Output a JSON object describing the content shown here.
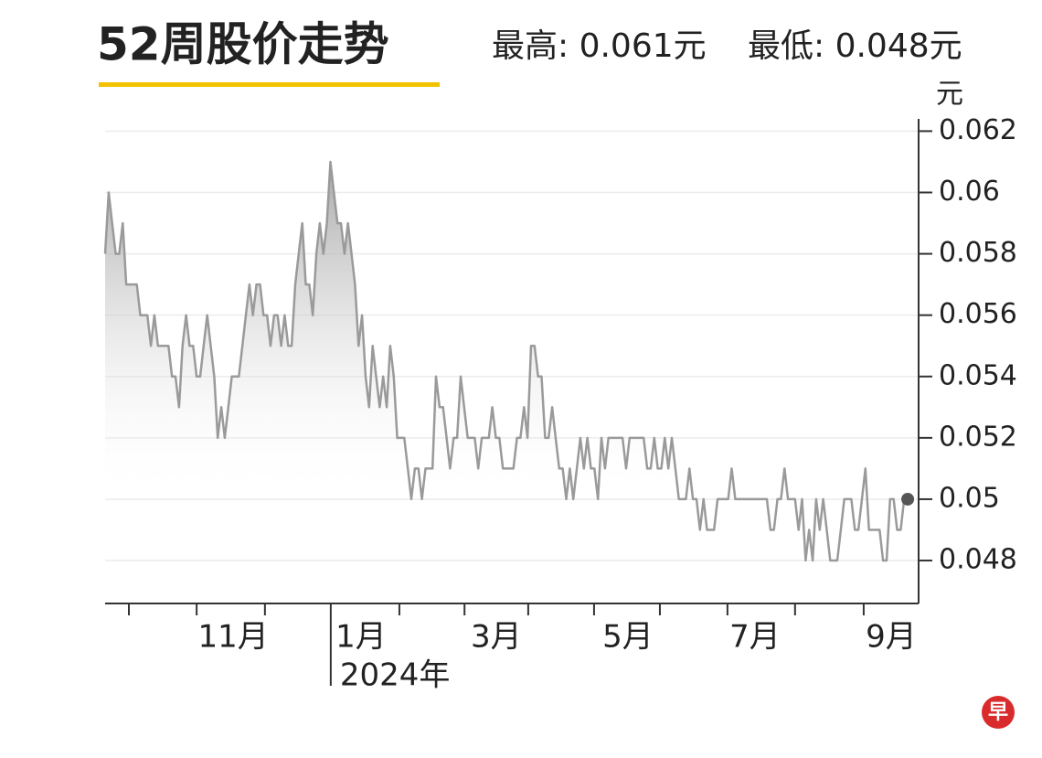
{
  "chart_data": {
    "type": "line",
    "title": "52周股价走势",
    "high_label": "最高: 0.061元",
    "low_label": "最低: 0.048元",
    "y_unit": "元",
    "logo": "早",
    "color": "#9a9a9a",
    "marker_color": "#555555",
    "grid": true,
    "values": [
      0.058,
      0.06,
      0.059,
      0.058,
      0.058,
      0.059,
      0.057,
      0.057,
      0.057,
      0.057,
      0.056,
      0.056,
      0.056,
      0.055,
      0.056,
      0.055,
      0.055,
      0.055,
      0.055,
      0.054,
      0.054,
      0.053,
      0.055,
      0.056,
      0.055,
      0.055,
      0.054,
      0.054,
      0.055,
      0.056,
      0.055,
      0.054,
      0.052,
      0.053,
      0.052,
      0.053,
      0.054,
      0.054,
      0.054,
      0.055,
      0.056,
      0.057,
      0.056,
      0.057,
      0.057,
      0.056,
      0.056,
      0.055,
      0.056,
      0.056,
      0.055,
      0.056,
      0.055,
      0.055,
      0.057,
      0.058,
      0.059,
      0.057,
      0.057,
      0.056,
      0.058,
      0.059,
      0.058,
      0.059,
      0.061,
      0.06,
      0.059,
      0.059,
      0.058,
      0.059,
      0.058,
      0.057,
      0.055,
      0.056,
      0.054,
      0.053,
      0.055,
      0.054,
      0.053,
      0.054,
      0.053,
      0.055,
      0.054,
      0.052,
      0.052,
      0.052,
      0.051,
      0.05,
      0.051,
      0.051,
      0.05,
      0.051,
      0.051,
      0.051,
      0.054,
      0.053,
      0.053,
      0.052,
      0.051,
      0.052,
      0.052,
      0.054,
      0.053,
      0.052,
      0.052,
      0.052,
      0.051,
      0.052,
      0.052,
      0.052,
      0.053,
      0.052,
      0.052,
      0.051,
      0.051,
      0.051,
      0.051,
      0.052,
      0.052,
      0.053,
      0.052,
      0.055,
      0.055,
      0.054,
      0.054,
      0.052,
      0.052,
      0.053,
      0.052,
      0.051,
      0.051,
      0.05,
      0.051,
      0.05,
      0.051,
      0.052,
      0.051,
      0.052,
      0.051,
      0.051,
      0.05,
      0.052,
      0.051,
      0.052,
      0.052,
      0.052,
      0.052,
      0.052,
      0.051,
      0.052,
      0.052,
      0.052,
      0.052,
      0.052,
      0.051,
      0.051,
      0.052,
      0.051,
      0.051,
      0.052,
      0.051,
      0.052,
      0.051,
      0.05,
      0.05,
      0.05,
      0.051,
      0.05,
      0.05,
      0.049,
      0.05,
      0.049,
      0.049,
      0.049,
      0.05,
      0.05,
      0.05,
      0.05,
      0.051,
      0.05,
      0.05,
      0.05,
      0.05,
      0.05,
      0.05,
      0.05,
      0.05,
      0.05,
      0.05,
      0.049,
      0.049,
      0.05,
      0.05,
      0.051,
      0.05,
      0.05,
      0.05,
      0.049,
      0.05,
      0.048,
      0.049,
      0.048,
      0.05,
      0.049,
      0.05,
      0.049,
      0.048,
      0.048,
      0.048,
      0.049,
      0.05,
      0.05,
      0.05,
      0.049,
      0.049,
      0.05,
      0.051,
      0.049,
      0.049,
      0.049,
      0.049,
      0.048,
      0.048,
      0.05,
      0.05,
      0.049,
      0.049,
      0.05,
      0.05
    ],
    "xlim": [
      0,
      231.1
    ],
    "xticks": [
      6.75,
      26.0,
      45.4,
      83.6,
      102.1,
      120.2,
      138.9,
      157.6,
      176.8,
      196.0,
      215.5
    ],
    "xtick_labels": [
      {
        "value": 36.4,
        "label": "11月"
      },
      {
        "value": 72.7,
        "label": "1月"
      },
      {
        "value": 111.1,
        "label": "3月"
      },
      {
        "value": 148.5,
        "label": "5月"
      },
      {
        "value": 184.6,
        "label": "7月"
      },
      {
        "value": 223.3,
        "label": "9月"
      }
    ],
    "year_marker": {
      "value": 64.1,
      "label": "2024年"
    },
    "ylim": [
      0.0466,
      0.0624
    ],
    "yticks": [
      0.048,
      0.05,
      0.052,
      0.054,
      0.056,
      0.058,
      0.06,
      0.062
    ]
  }
}
